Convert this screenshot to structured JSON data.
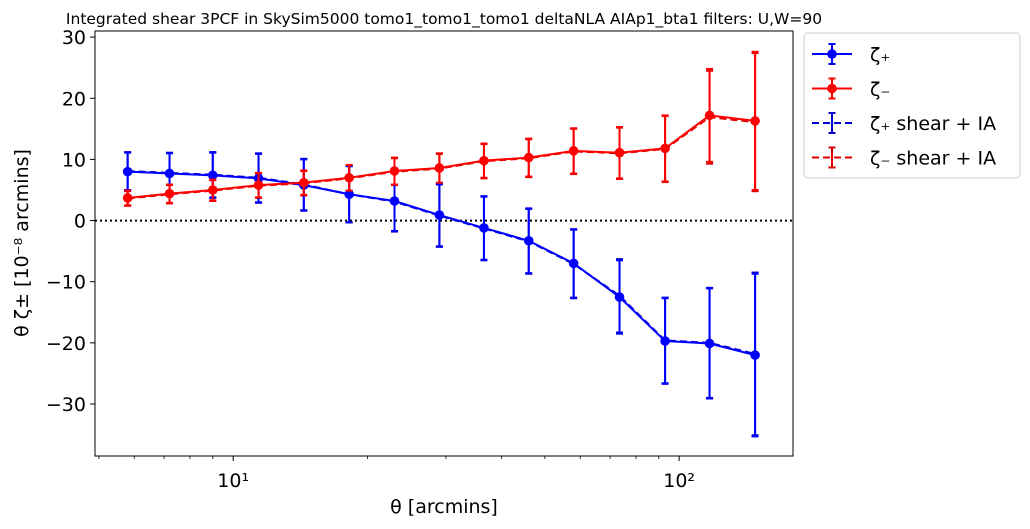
{
  "chart_data": {
    "type": "line",
    "title": "Integrated shear 3PCF in SkySim5000 tomo1_tomo1_tomo1 deltaNLA AIAp1_bta1 filters: U,W=90",
    "xlabel": "θ [arcmins]",
    "ylabel": "θ ζ± [10⁻⁸ arcmins]",
    "xscale": "log",
    "xlim": [
      4.9,
      180
    ],
    "ylim": [
      -38.5,
      31
    ],
    "xticks": [
      {
        "value": 10,
        "label": "10¹"
      },
      {
        "value": 100,
        "label": "10²"
      }
    ],
    "yticks": [
      -30,
      -20,
      -10,
      0,
      10,
      20,
      30
    ],
    "ytick_labels": [
      "−30",
      "−20",
      "−10",
      "0",
      "10",
      "20",
      "30"
    ],
    "zero_line": true,
    "grid": false,
    "legend_position": "outside-right-top",
    "x": [
      5.8,
      7.2,
      9.0,
      11.4,
      14.4,
      18.2,
      23.0,
      29.0,
      36.5,
      46.0,
      58.0,
      73.5,
      93.0,
      117.0,
      148.0
    ],
    "series": [
      {
        "name": "ζ₊",
        "color": "#0000ff",
        "linestyle": "solid",
        "marker": true,
        "values": [
          8.0,
          7.7,
          7.4,
          6.9,
          5.8,
          4.3,
          3.2,
          0.9,
          -1.2,
          -3.3,
          -7.0,
          -12.5,
          -19.7,
          -20.1,
          -22.0
        ],
        "yerr": [
          3.1,
          3.3,
          3.7,
          4.0,
          4.2,
          4.6,
          4.9,
          5.1,
          5.2,
          5.3,
          5.6,
          6.0,
          7.0,
          9.0,
          13.3
        ]
      },
      {
        "name": "ζ₋",
        "color": "#ff0000",
        "linestyle": "solid",
        "marker": true,
        "values": [
          3.7,
          4.4,
          5.0,
          5.8,
          6.2,
          7.0,
          8.1,
          8.6,
          9.8,
          10.3,
          11.4,
          11.1,
          11.8,
          17.2,
          16.3
        ],
        "yerr": [
          1.2,
          1.5,
          1.7,
          2.0,
          2.0,
          2.1,
          2.2,
          2.4,
          2.8,
          3.1,
          3.7,
          4.2,
          5.4,
          7.6,
          11.3
        ]
      },
      {
        "name": "ζ₊ shear + IA",
        "color": "#0000cc",
        "linestyle": "dashed",
        "marker": false,
        "values": [
          8.1,
          7.8,
          7.5,
          7.0,
          5.9,
          4.3,
          3.1,
          0.8,
          -1.3,
          -3.4,
          -7.1,
          -12.3,
          -19.6,
          -20.0,
          -21.8
        ],
        "yerr": [
          3.1,
          3.3,
          3.7,
          4.0,
          4.2,
          4.6,
          4.9,
          5.1,
          5.2,
          5.3,
          5.6,
          6.0,
          7.0,
          9.0,
          13.3
        ]
      },
      {
        "name": "ζ₋ shear + IA",
        "color": "#dd0000",
        "linestyle": "dashed",
        "marker": false,
        "values": [
          3.6,
          4.3,
          4.9,
          5.7,
          6.1,
          6.9,
          8.0,
          8.5,
          9.7,
          10.2,
          11.3,
          11.0,
          11.7,
          16.9,
          16.1
        ],
        "yerr": [
          1.2,
          1.5,
          1.7,
          2.0,
          2.0,
          2.1,
          2.2,
          2.4,
          2.8,
          3.1,
          3.7,
          4.2,
          5.4,
          7.6,
          11.3
        ]
      }
    ]
  }
}
